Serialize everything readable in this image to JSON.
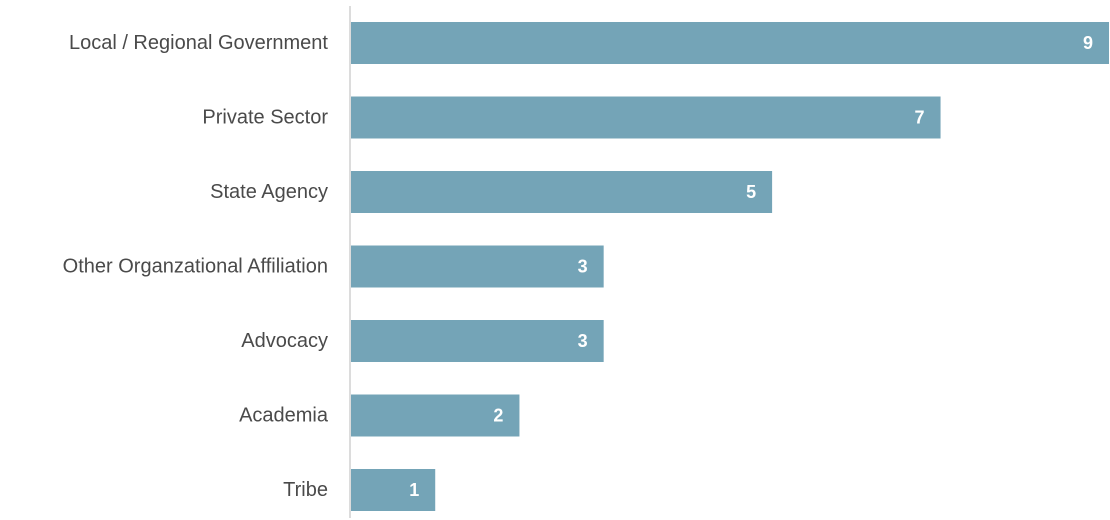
{
  "chart_data": {
    "type": "bar",
    "orientation": "horizontal",
    "categories": [
      "Local / Regional Government",
      "Private Sector",
      "State Agency",
      "Other Organzational Affiliation",
      "Advocacy",
      "Academia",
      "Tribe"
    ],
    "values": [
      9,
      7,
      5,
      3,
      3,
      2,
      1
    ],
    "title": "",
    "xlabel": "",
    "ylabel": "",
    "xlim": [
      0,
      9
    ],
    "grid": false,
    "legend": "none",
    "data_labels": "inside-end",
    "colors": {
      "bar": "#74a4b7",
      "value_label": "#ffffff",
      "category_label": "#4a4a4a",
      "axis_line": "#d0d0d0"
    }
  }
}
